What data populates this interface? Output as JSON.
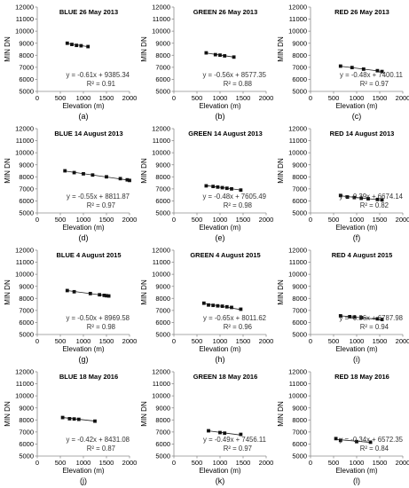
{
  "figure": {
    "panels": [
      {
        "panel_label": "(a)",
        "title": "BLUE 26 May 2013",
        "equation": "y = -0.61x + 9385.34",
        "r2": "R² = 0.91"
      },
      {
        "panel_label": "(b)",
        "title": "GREEN 26 May 2013",
        "equation": "y = -0.56x + 8577.35",
        "r2": "R² = 0.88"
      },
      {
        "panel_label": "(c)",
        "title": "RED 26 May 2013",
        "equation": "y = -0.48x + 7400.11",
        "r2": "R² = 0.97"
      },
      {
        "panel_label": "(d)",
        "title": "BLUE 14 August 2013",
        "equation": "y = -0.55x + 8811.87",
        "r2": "R² = 0.97"
      },
      {
        "panel_label": "(e)",
        "title": "GREEN 14 August 2013",
        "equation": "y = -0.48x + 7605.49",
        "r2": "R² = 0.98"
      },
      {
        "panel_label": "(f)",
        "title": "RED 14 August 2013",
        "equation": "y = -0.39x + 6674.14",
        "r2": "R² = 0.82"
      },
      {
        "panel_label": "(g)",
        "title": "BLUE 4 August 2015",
        "equation": "y = -0.50x + 8969.58",
        "r2": "R² = 0.98"
      },
      {
        "panel_label": "(h)",
        "title": "GREEN 4 August 2015",
        "equation": "y = -0.65x + 8011.62",
        "r2": "R² = 0.96"
      },
      {
        "panel_label": "(i)",
        "title": "RED 4 August 2015",
        "equation": "y = -0.36x + 6787.98",
        "r2": "R² = 0.94"
      },
      {
        "panel_label": "(j)",
        "title": "BLUE 18 May 2016",
        "equation": "y = -0.42x + 8431.08",
        "r2": "R² = 0.87"
      },
      {
        "panel_label": "(k)",
        "title": "GREEN 18 May 2016",
        "equation": "y = -0.49x + 7456.11",
        "r2": "R² = 0.97"
      },
      {
        "panel_label": "(l)",
        "title": "RED 18 May 2016",
        "equation": "y = -0.34x + 6572.35",
        "r2": "R² = 0.84"
      }
    ]
  },
  "chart_data": [
    {
      "type": "scatter",
      "title": "BLUE 26 May 2013",
      "xlabel": "Elevation (m)",
      "ylabel": "MIN DN",
      "xlim": [
        0,
        2000
      ],
      "ylim": [
        5000,
        12000
      ],
      "x_ticks": [
        "0",
        "500",
        "1000",
        "1500",
        "2000"
      ],
      "y_ticks": [
        "5000",
        "6000",
        "7000",
        "8000",
        "9000",
        "10000",
        "11000",
        "12000"
      ],
      "series": [
        {
          "x": [
            650,
            750,
            850,
            950,
            1100
          ],
          "y": [
            9000,
            8900,
            8820,
            8790,
            8720
          ]
        }
      ],
      "trendline": {
        "slope": -0.61,
        "intercept": 9385.34,
        "x_range": [
          650,
          1100
        ]
      }
    },
    {
      "type": "scatter",
      "title": "GREEN 26 May 2013",
      "xlabel": "Elevation (m)",
      "ylabel": "MIN DN",
      "xlim": [
        0,
        2000
      ],
      "ylim": [
        5000,
        12000
      ],
      "x_ticks": [
        "0",
        "500",
        "1000",
        "1500",
        "2000"
      ],
      "y_ticks": [
        "5000",
        "6000",
        "7000",
        "8000",
        "9000",
        "10000",
        "11000",
        "12000"
      ],
      "series": [
        {
          "x": [
            700,
            900,
            1000,
            1100,
            1300
          ],
          "y": [
            8200,
            8050,
            8010,
            7950,
            7850
          ]
        }
      ],
      "trendline": {
        "slope": -0.56,
        "intercept": 8577.35,
        "x_range": [
          700,
          1300
        ]
      }
    },
    {
      "type": "scatter",
      "title": "RED 26 May 2013",
      "xlabel": "Elevation (m)",
      "ylabel": "MIN DN",
      "xlim": [
        0,
        2000
      ],
      "ylim": [
        5000,
        12000
      ],
      "x_ticks": [
        "0",
        "500",
        "1000",
        "1500",
        "2000"
      ],
      "y_ticks": [
        "5000",
        "6000",
        "7000",
        "8000",
        "9000",
        "10000",
        "11000",
        "12000"
      ],
      "series": [
        {
          "x": [
            650,
            900,
            1150,
            1450,
            1550
          ],
          "y": [
            7100,
            6980,
            6850,
            6720,
            6650
          ]
        }
      ],
      "trendline": {
        "slope": -0.48,
        "intercept": 7400.11,
        "x_range": [
          650,
          1550
        ]
      }
    },
    {
      "type": "scatter",
      "title": "BLUE 14 August 2013",
      "xlabel": "Elevation (m)",
      "ylabel": "MIN DN",
      "xlim": [
        0,
        2000
      ],
      "ylim": [
        5000,
        12000
      ],
      "x_ticks": [
        "0",
        "500",
        "1000",
        "1500",
        "2000"
      ],
      "y_ticks": [
        "5000",
        "6000",
        "7000",
        "8000",
        "9000",
        "10000",
        "11000",
        "12000"
      ],
      "series": [
        {
          "x": [
            600,
            800,
            1000,
            1200,
            1500,
            1800,
            1950,
            2000
          ],
          "y": [
            8500,
            8350,
            8250,
            8150,
            8000,
            7850,
            7750,
            7700
          ]
        }
      ],
      "trendline": {
        "slope": -0.55,
        "intercept": 8811.87,
        "x_range": [
          600,
          2000
        ]
      }
    },
    {
      "type": "scatter",
      "title": "GREEN 14 August 2013",
      "xlabel": "Elevation (m)",
      "ylabel": "MIN DN",
      "xlim": [
        0,
        2000
      ],
      "ylim": [
        5000,
        12000
      ],
      "x_ticks": [
        "0",
        "500",
        "1000",
        "1500",
        "2000"
      ],
      "y_ticks": [
        "5000",
        "6000",
        "7000",
        "8000",
        "9000",
        "10000",
        "11000",
        "12000"
      ],
      "series": [
        {
          "x": [
            700,
            850,
            950,
            1050,
            1150,
            1250,
            1450
          ],
          "y": [
            7250,
            7200,
            7150,
            7100,
            7050,
            7000,
            6900
          ]
        }
      ],
      "trendline": {
        "slope": -0.48,
        "intercept": 7605.49,
        "x_range": [
          700,
          1450
        ]
      }
    },
    {
      "type": "scatter",
      "title": "RED 14 August 2013",
      "xlabel": "Elevation (m)",
      "ylabel": "MIN DN",
      "xlim": [
        0,
        2000
      ],
      "ylim": [
        5000,
        12000
      ],
      "x_ticks": [
        "0",
        "500",
        "1000",
        "1500",
        "2000"
      ],
      "y_ticks": [
        "5000",
        "6000",
        "7000",
        "8000",
        "9000",
        "10000",
        "11000",
        "12000"
      ],
      "series": [
        {
          "x": [
            650,
            800,
            950,
            1100,
            1250,
            1450,
            1550
          ],
          "y": [
            6450,
            6320,
            6280,
            6220,
            6180,
            6120,
            6080
          ]
        }
      ],
      "trendline": {
        "slope": -0.39,
        "intercept": 6674.14,
        "x_range": [
          650,
          1550
        ]
      }
    },
    {
      "type": "scatter",
      "title": "BLUE 4 August 2015",
      "xlabel": "Elevation (m)",
      "ylabel": "MIN DN",
      "xlim": [
        0,
        2000
      ],
      "ylim": [
        5000,
        12000
      ],
      "x_ticks": [
        "0",
        "500",
        "1000",
        "1500",
        "2000"
      ],
      "y_ticks": [
        "5000",
        "6000",
        "7000",
        "8000",
        "9000",
        "10000",
        "11000",
        "12000"
      ],
      "series": [
        {
          "x": [
            650,
            800,
            1150,
            1350,
            1450,
            1500,
            1550
          ],
          "y": [
            8650,
            8550,
            8400,
            8300,
            8250,
            8220,
            8200
          ]
        }
      ],
      "trendline": {
        "slope": -0.5,
        "intercept": 8969.58,
        "x_range": [
          650,
          1550
        ]
      }
    },
    {
      "type": "scatter",
      "title": "GREEN 4 August 2015",
      "xlabel": "Elevation (m)",
      "ylabel": "MIN DN",
      "xlim": [
        0,
        2000
      ],
      "ylim": [
        5000,
        12000
      ],
      "x_ticks": [
        "0",
        "500",
        "1000",
        "1500",
        "2000"
      ],
      "y_ticks": [
        "5000",
        "6000",
        "7000",
        "8000",
        "9000",
        "10000",
        "11000",
        "12000"
      ],
      "series": [
        {
          "x": [
            650,
            750,
            850,
            950,
            1050,
            1150,
            1250,
            1450
          ],
          "y": [
            7600,
            7450,
            7420,
            7380,
            7350,
            7300,
            7250,
            7100
          ]
        }
      ],
      "trendline": {
        "slope": -0.65,
        "intercept": 8011.62,
        "x_range": [
          650,
          1450
        ]
      }
    },
    {
      "type": "scatter",
      "title": "RED 4 August 2015",
      "xlabel": "Elevation (m)",
      "ylabel": "MIN DN",
      "xlim": [
        0,
        2000
      ],
      "ylim": [
        5000,
        12000
      ],
      "x_ticks": [
        "0",
        "500",
        "1000",
        "1500",
        "2000"
      ],
      "y_ticks": [
        "5000",
        "6000",
        "7000",
        "8000",
        "9000",
        "10000",
        "11000",
        "12000"
      ],
      "series": [
        {
          "x": [
            650,
            850,
            950,
            1100,
            1450,
            1550
          ],
          "y": [
            6550,
            6480,
            6450,
            6400,
            6300,
            6250
          ]
        }
      ],
      "trendline": {
        "slope": -0.36,
        "intercept": 6787.98,
        "x_range": [
          650,
          1550
        ]
      }
    },
    {
      "type": "scatter",
      "title": "BLUE 18 May 2016",
      "xlabel": "Elevation (m)",
      "ylabel": "MIN DN",
      "xlim": [
        0,
        2000
      ],
      "ylim": [
        5000,
        12000
      ],
      "x_ticks": [
        "0",
        "500",
        "1000",
        "1500",
        "2000"
      ],
      "y_ticks": [
        "5000",
        "6000",
        "7000",
        "8000",
        "9000",
        "10000",
        "11000",
        "12000"
      ],
      "series": [
        {
          "x": [
            550,
            700,
            800,
            900,
            1250
          ],
          "y": [
            8200,
            8100,
            8080,
            8050,
            7900
          ]
        }
      ],
      "trendline": {
        "slope": -0.42,
        "intercept": 8431.08,
        "x_range": [
          550,
          1250
        ]
      }
    },
    {
      "type": "scatter",
      "title": "GREEN 18 May 2016",
      "xlabel": "Elevation (m)",
      "ylabel": "MIN DN",
      "xlim": [
        0,
        2000
      ],
      "ylim": [
        5000,
        12000
      ],
      "x_ticks": [
        "0",
        "500",
        "1000",
        "1500",
        "2000"
      ],
      "y_ticks": [
        "5000",
        "6000",
        "7000",
        "8000",
        "9000",
        "10000",
        "11000",
        "12000"
      ],
      "series": [
        {
          "x": [
            750,
            1000,
            1100,
            1450
          ],
          "y": [
            7100,
            6950,
            6900,
            6800
          ]
        }
      ],
      "trendline": {
        "slope": -0.49,
        "intercept": 7456.11,
        "x_range": [
          750,
          1450
        ]
      }
    },
    {
      "type": "scatter",
      "title": "RED 18 May 2016",
      "xlabel": "Elevation (m)",
      "ylabel": "MIN DN",
      "xlim": [
        0,
        2000
      ],
      "ylim": [
        5000,
        12000
      ],
      "x_ticks": [
        "0",
        "500",
        "1000",
        "1500",
        "2000"
      ],
      "y_ticks": [
        "5000",
        "6000",
        "7000",
        "8000",
        "9000",
        "10000",
        "11000",
        "12000"
      ],
      "series": [
        {
          "x": [
            550,
            650,
            1000,
            1300
          ],
          "y": [
            6450,
            6300,
            6200,
            6150
          ]
        }
      ],
      "trendline": {
        "slope": -0.34,
        "intercept": 6572.35,
        "x_range": [
          550,
          1300
        ]
      }
    }
  ]
}
